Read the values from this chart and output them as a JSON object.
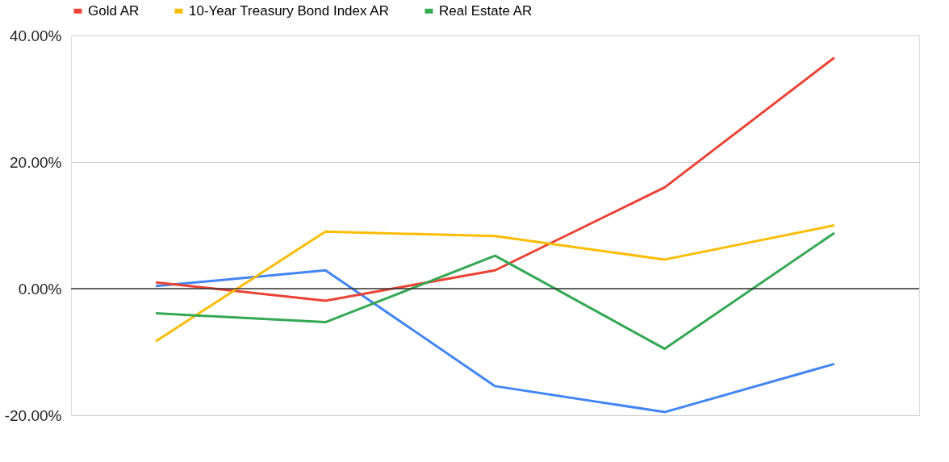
{
  "chart_data": {
    "type": "line",
    "categories": [
      null,
      null,
      null,
      null,
      null
    ],
    "series": [
      {
        "color": "#4285f4",
        "values": [
          0.4,
          2.9,
          -15.4,
          -19.5,
          -11.9
        ]
      },
      {
        "name": "Gold AR",
        "color": "#ea4335",
        "values": [
          1.0,
          -1.9,
          2.9,
          16.0,
          36.5
        ]
      },
      {
        "name": "10-Year Treasury Bond Index AR",
        "color": "#fbbc04",
        "values": [
          -8.3,
          9.0,
          8.3,
          4.6,
          10.0
        ]
      },
      {
        "name": "Real Estate AR",
        "color": "#34a853",
        "values": [
          -3.9,
          -5.3,
          5.2,
          -9.5,
          8.8
        ]
      }
    ],
    "ylim": [
      -20,
      40
    ],
    "yticks": [
      {
        "value": -20,
        "label": "-20.00%"
      },
      {
        "value": 0,
        "label": "0.00%"
      },
      {
        "value": 20,
        "label": "20.00%"
      },
      {
        "value": 40,
        "label": "40.00%"
      }
    ],
    "ref_lines": [
      {
        "axis": "y",
        "value": 0,
        "color": "#333333"
      }
    ],
    "grid": "y",
    "legend": "top",
    "tick_labels": "y",
    "marker": "none",
    "line_style": "solid"
  }
}
